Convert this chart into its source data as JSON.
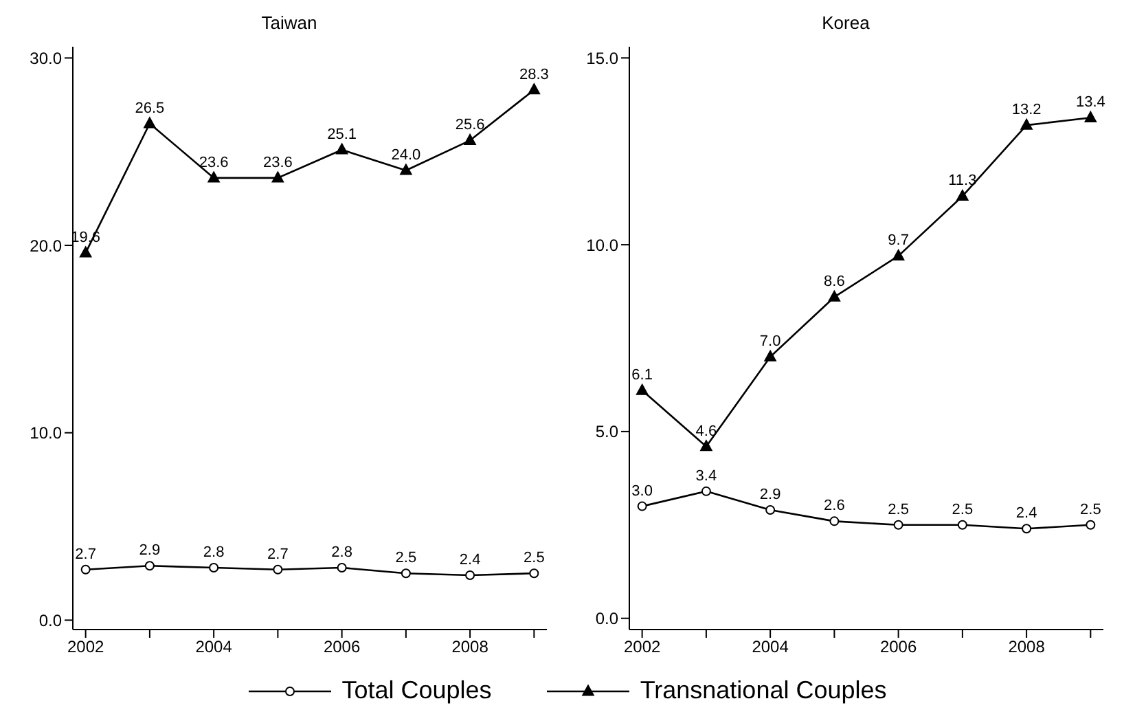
{
  "chart_data": [
    {
      "type": "line",
      "title": "Taiwan",
      "x": [
        2002,
        2003,
        2004,
        2005,
        2006,
        2007,
        2008,
        2009
      ],
      "xlim": [
        2001.8,
        2009.2
      ],
      "xticks": [
        2002,
        {
          "value": 2003,
          "label": null
        },
        2004,
        {
          "value": 2005,
          "label": null
        },
        2006,
        {
          "value": 2007,
          "label": null
        },
        2008,
        {
          "value": 2009,
          "label": null
        }
      ],
      "ylim": [
        -0.5,
        30.6
      ],
      "yticks": [
        {
          "value": 0,
          "label": "0.0"
        },
        {
          "value": 10,
          "label": "10.0"
        },
        {
          "value": 20,
          "label": "20.0"
        },
        {
          "value": 30,
          "label": "30.0"
        }
      ],
      "grid": false,
      "legend": "bottom",
      "series": [
        {
          "name": "Total Couples",
          "color": "#000000",
          "marker": "circle",
          "values": [
            2.7,
            2.9,
            2.8,
            2.7,
            2.8,
            2.5,
            2.4,
            2.5
          ],
          "value_labels": [
            "2.7",
            "2.9",
            "2.8",
            "2.7",
            "2.8",
            "2.5",
            "2.4",
            "2.5"
          ]
        },
        {
          "name": "Transnational Couples",
          "color": "#000000",
          "marker": "triangle",
          "values": [
            19.6,
            26.5,
            23.6,
            23.6,
            25.1,
            24.0,
            25.6,
            28.3
          ],
          "value_labels": [
            "19.6",
            "26.5",
            "23.6",
            "23.6",
            "25.1",
            "24.0",
            "25.6",
            "28.3"
          ]
        }
      ]
    },
    {
      "type": "line",
      "title": "Korea",
      "x": [
        2002,
        2003,
        2004,
        2005,
        2006,
        2007,
        2008,
        2009
      ],
      "xlim": [
        2001.8,
        2009.2
      ],
      "xticks": [
        2002,
        {
          "value": 2003,
          "label": null
        },
        2004,
        {
          "value": 2005,
          "label": null
        },
        2006,
        {
          "value": 2007,
          "label": null
        },
        2008,
        {
          "value": 2009,
          "label": null
        }
      ],
      "ylim": [
        -0.3,
        15.3
      ],
      "yticks": [
        {
          "value": 0,
          "label": "0.0"
        },
        {
          "value": 5,
          "label": "5.0"
        },
        {
          "value": 10,
          "label": "10.0"
        },
        {
          "value": 15,
          "label": "15.0"
        }
      ],
      "grid": false,
      "series": [
        {
          "color": "#000000",
          "marker": "circle",
          "values": [
            3.0,
            3.4,
            2.9,
            2.6,
            2.5,
            2.5,
            2.4,
            2.5
          ],
          "value_labels": [
            "3.0",
            "3.4",
            "2.9",
            "2.6",
            "2.5",
            "2.5",
            "2.4",
            "2.5"
          ]
        },
        {
          "color": "#000000",
          "marker": "triangle",
          "values": [
            6.1,
            4.6,
            7.0,
            8.6,
            9.7,
            11.3,
            13.2,
            13.4
          ],
          "value_labels": [
            "6.1",
            "4.6",
            "7.0",
            "8.6",
            "9.7",
            "11.3",
            "13.2",
            "13.4"
          ]
        }
      ]
    }
  ]
}
